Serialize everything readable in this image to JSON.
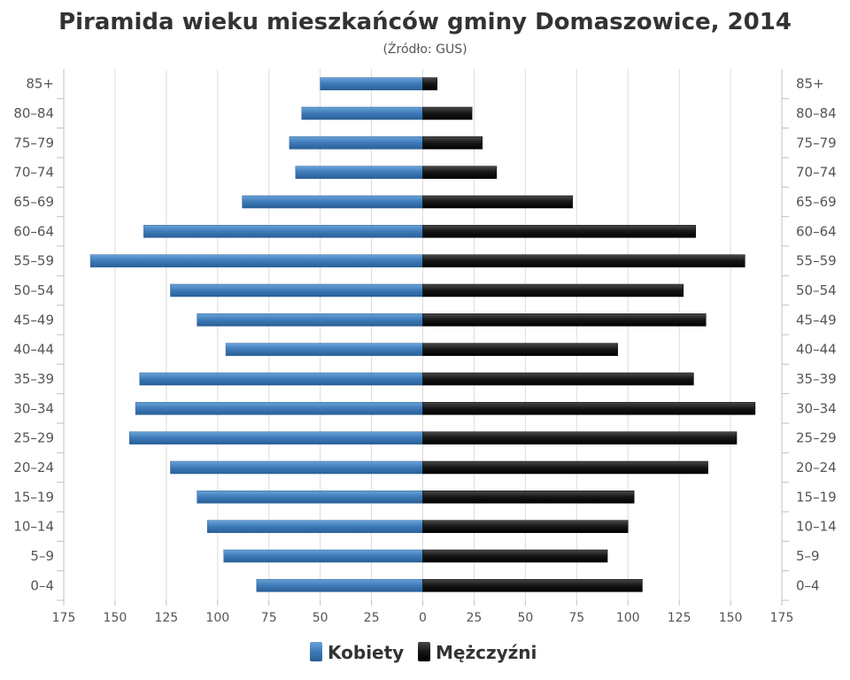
{
  "chart_data": {
    "type": "bar",
    "orientation": "horizontal",
    "title": "Piramida wieku mieszkańców gminy Domaszowice, 2014",
    "subtitle": "(Źródło: GUS)",
    "categories": [
      "85+",
      "80-84",
      "75-79",
      "70-74",
      "65-69",
      "60-64",
      "55-59",
      "50-54",
      "45-49",
      "40-44",
      "35-39",
      "30-34",
      "25-29",
      "20-24",
      "15-19",
      "10-14",
      "5-9",
      "0-4"
    ],
    "series": [
      {
        "name": "Kobiety",
        "color": "#3d7ab8",
        "values": [
          50,
          59,
          65,
          62,
          88,
          136,
          162,
          123,
          110,
          96,
          138,
          140,
          143,
          123,
          110,
          105,
          97,
          81
        ]
      },
      {
        "name": "Mężczyźni",
        "color": "#1a1a1a",
        "values": [
          7,
          24,
          29,
          36,
          73,
          133,
          157,
          127,
          138,
          95,
          132,
          162,
          153,
          139,
          103,
          100,
          90,
          107
        ]
      }
    ],
    "xlim": [
      -175,
      175
    ],
    "xticks": [
      "175",
      "150",
      "125",
      "100",
      "75",
      "50",
      "25",
      "0",
      "25",
      "50",
      "75",
      "100",
      "125",
      "150",
      "175"
    ],
    "grid": true,
    "legend_position": "bottom"
  }
}
